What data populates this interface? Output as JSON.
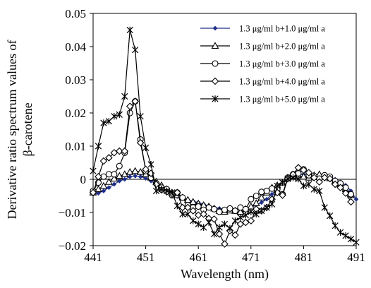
{
  "chart_data": {
    "type": "line",
    "title": "",
    "xlabel": "Wavelength (nm)",
    "ylabel_lines": [
      "Derivative ratio spectrum values of",
      "β-carotene"
    ],
    "xlim": [
      441,
      491
    ],
    "ylim": [
      -0.02,
      0.05
    ],
    "x_ticks": [
      441,
      451,
      461,
      471,
      481,
      491
    ],
    "x_tick_labels": [
      "441",
      "451",
      "461",
      "471",
      "481",
      "491"
    ],
    "y_ticks": [
      -0.02,
      -0.01,
      0,
      0.01,
      0.02,
      0.03,
      0.04,
      0.05
    ],
    "y_tick_labels": [
      "−0.02",
      "−0.01",
      "0",
      "0.01",
      "0.02",
      "0.03",
      "0.04",
      "0.05"
    ],
    "grid": false,
    "zero_line": true,
    "legend_position": "top-right",
    "series": [
      {
        "name": "1.3 μg/ml b+1.0 μg/ml a",
        "marker": "diamond-small",
        "color": "#1f2f8a",
        "x": [
          441,
          442,
          443,
          444,
          445,
          446,
          447,
          448,
          449,
          450,
          451,
          452,
          453,
          454,
          455,
          456,
          457,
          458,
          459,
          460,
          461,
          462,
          463,
          464,
          465,
          466,
          467,
          468,
          469,
          470,
          471,
          472,
          473,
          474,
          475,
          476,
          477,
          478,
          479,
          480,
          481,
          482,
          483,
          484,
          485,
          486,
          487,
          488,
          489,
          490,
          491
        ],
        "y": [
          -0.0045,
          -0.0042,
          -0.0035,
          -0.0025,
          -0.0015,
          -0.0005,
          0.0,
          0.0008,
          0.001,
          0.0008,
          0.0003,
          -0.0005,
          -0.0015,
          -0.0025,
          -0.0035,
          -0.0045,
          -0.0052,
          -0.0058,
          -0.0062,
          -0.0066,
          -0.007,
          -0.0075,
          -0.008,
          -0.0085,
          -0.0088,
          -0.009,
          -0.0091,
          -0.0091,
          -0.009,
          -0.0088,
          -0.0085,
          -0.0078,
          -0.007,
          -0.006,
          -0.0045,
          -0.0028,
          -0.0012,
          0.0,
          0.0008,
          0.0012,
          0.0015,
          0.0014,
          0.0012,
          0.001,
          0.0008,
          0.0005,
          0.0,
          -0.0008,
          -0.0018,
          -0.0035,
          -0.006
        ]
      },
      {
        "name": "1.3 μg/ml b+2.0 μg/ml a",
        "marker": "triangle",
        "color": "#000000",
        "x": [
          441,
          442,
          443,
          444,
          445,
          446,
          447,
          448,
          449,
          450,
          451,
          452,
          453,
          454,
          455,
          456,
          457,
          458,
          459,
          460,
          461,
          462,
          463,
          464,
          465,
          466,
          467,
          468,
          469,
          470,
          471,
          472,
          473,
          474,
          475,
          476,
          477,
          478,
          479,
          480,
          481,
          482,
          483,
          484,
          485,
          486,
          487,
          488,
          489,
          490
        ],
        "y": [
          -0.004,
          -0.003,
          -0.002,
          -0.0008,
          0.0002,
          0.001,
          0.0015,
          0.0022,
          0.0025,
          0.0022,
          0.0015,
          0.0005,
          -0.0007,
          -0.0018,
          -0.003,
          -0.004,
          -0.0048,
          -0.0055,
          -0.0062,
          -0.0068,
          -0.0073,
          -0.0078,
          -0.0082,
          -0.0088,
          -0.0095,
          -0.0098,
          -0.0094,
          -0.0095,
          -0.0098,
          -0.009,
          -0.0082,
          -0.0072,
          -0.0055,
          -0.004,
          -0.0025,
          -0.0018,
          -0.001,
          0.0005,
          0.001,
          0.0008,
          0.0008,
          0.0005,
          0.0012,
          0.0015,
          0.0008,
          0.0003,
          -0.0005,
          -0.0015,
          -0.003,
          -0.0048
        ]
      },
      {
        "name": "1.3 μg/ml b+3.0 μg/ml a",
        "marker": "circle",
        "color": "#000000",
        "x": [
          441,
          442,
          443,
          444,
          445,
          446,
          447,
          448,
          449,
          450,
          451,
          452,
          453,
          454,
          455,
          456,
          457,
          458,
          459,
          460,
          461,
          462,
          463,
          464,
          465,
          466,
          467,
          468,
          469,
          470,
          471,
          472,
          473,
          474,
          475,
          476,
          477,
          478,
          479,
          480,
          481,
          482,
          483,
          484,
          485,
          486,
          487,
          488,
          489,
          490
        ],
        "y": [
          -0.0035,
          -0.001,
          0.0008,
          0.0015,
          0.0015,
          0.004,
          0.008,
          0.02,
          0.0235,
          0.012,
          0.0025,
          0.0005,
          -0.0012,
          -0.0025,
          -0.003,
          -0.0048,
          -0.004,
          -0.0055,
          -0.0078,
          -0.0085,
          -0.0082,
          -0.0092,
          -0.0085,
          -0.009,
          -0.0098,
          -0.0092,
          -0.0088,
          -0.0095,
          -0.0085,
          -0.009,
          -0.006,
          -0.005,
          -0.0038,
          -0.0035,
          -0.0028,
          -0.003,
          -0.0045,
          0.0005,
          0.0015,
          0.0018,
          0.003,
          0.0012,
          0.001,
          0.0002,
          0.0012,
          0.0008,
          -0.0005,
          -0.0012,
          -0.0025,
          -0.0045
        ]
      },
      {
        "name": "1.3 μg/ml b+4.0 μg/ml a",
        "marker": "diamond",
        "color": "#000000",
        "x": [
          441,
          442,
          443,
          444,
          445,
          446,
          447,
          448,
          449,
          450,
          451,
          452,
          453,
          454,
          455,
          456,
          457,
          458,
          459,
          460,
          461,
          462,
          463,
          464,
          465,
          466,
          467,
          468,
          469,
          470,
          471,
          472,
          473,
          474,
          475,
          476,
          477,
          478,
          479,
          480,
          481,
          482,
          483,
          484,
          485,
          486,
          487,
          488,
          489,
          490
        ],
        "y": [
          -0.004,
          0.0008,
          0.0055,
          0.0065,
          0.008,
          0.0085,
          0.0085,
          0.022,
          0.0235,
          0.011,
          0.003,
          0.0018,
          -0.0015,
          -0.0032,
          -0.0038,
          -0.0045,
          -0.004,
          -0.0085,
          -0.0085,
          -0.0095,
          -0.0108,
          -0.0105,
          -0.0118,
          -0.012,
          -0.0165,
          -0.0195,
          -0.0155,
          -0.0168,
          -0.0135,
          -0.013,
          -0.0125,
          -0.009,
          -0.0095,
          -0.0085,
          -0.006,
          -0.004,
          -0.0048,
          0.0002,
          0.0015,
          0.0035,
          0.0028,
          0.002,
          0.0005,
          -0.0008,
          0.0005,
          0.0002,
          -0.0015,
          -0.0025,
          -0.0042,
          -0.0068
        ]
      },
      {
        "name": "1.3 μg/ml b+5.0 μg/ml a",
        "marker": "star",
        "color": "#000000",
        "x": [
          441,
          442,
          443,
          444,
          445,
          446,
          447,
          448,
          449,
          450,
          451,
          452,
          453,
          454,
          455,
          456,
          457,
          458,
          459,
          460,
          461,
          462,
          463,
          464,
          465,
          466,
          467,
          468,
          469,
          470,
          471,
          472,
          473,
          474,
          475,
          476,
          477,
          478,
          479,
          480,
          481,
          482,
          483,
          484,
          485,
          486,
          487,
          488,
          489,
          490,
          491
        ],
        "y": [
          0.0025,
          0.01,
          0.017,
          0.0175,
          0.019,
          0.0195,
          0.025,
          0.045,
          0.039,
          0.019,
          0.0095,
          0.0045,
          -0.0035,
          -0.003,
          -0.0035,
          -0.004,
          -0.008,
          -0.0105,
          -0.0105,
          -0.0125,
          -0.0135,
          -0.0145,
          -0.013,
          -0.0165,
          -0.0145,
          -0.0135,
          -0.0148,
          -0.0125,
          -0.0115,
          -0.0108,
          -0.0098,
          -0.0105,
          -0.0095,
          -0.0085,
          -0.0075,
          -0.002,
          -0.001,
          0.0001,
          0.0005,
          0.0001,
          -0.002,
          -0.0015,
          -0.003,
          -0.0035,
          -0.0085,
          -0.011,
          -0.014,
          -0.016,
          -0.017,
          -0.018,
          -0.019
        ]
      }
    ]
  }
}
